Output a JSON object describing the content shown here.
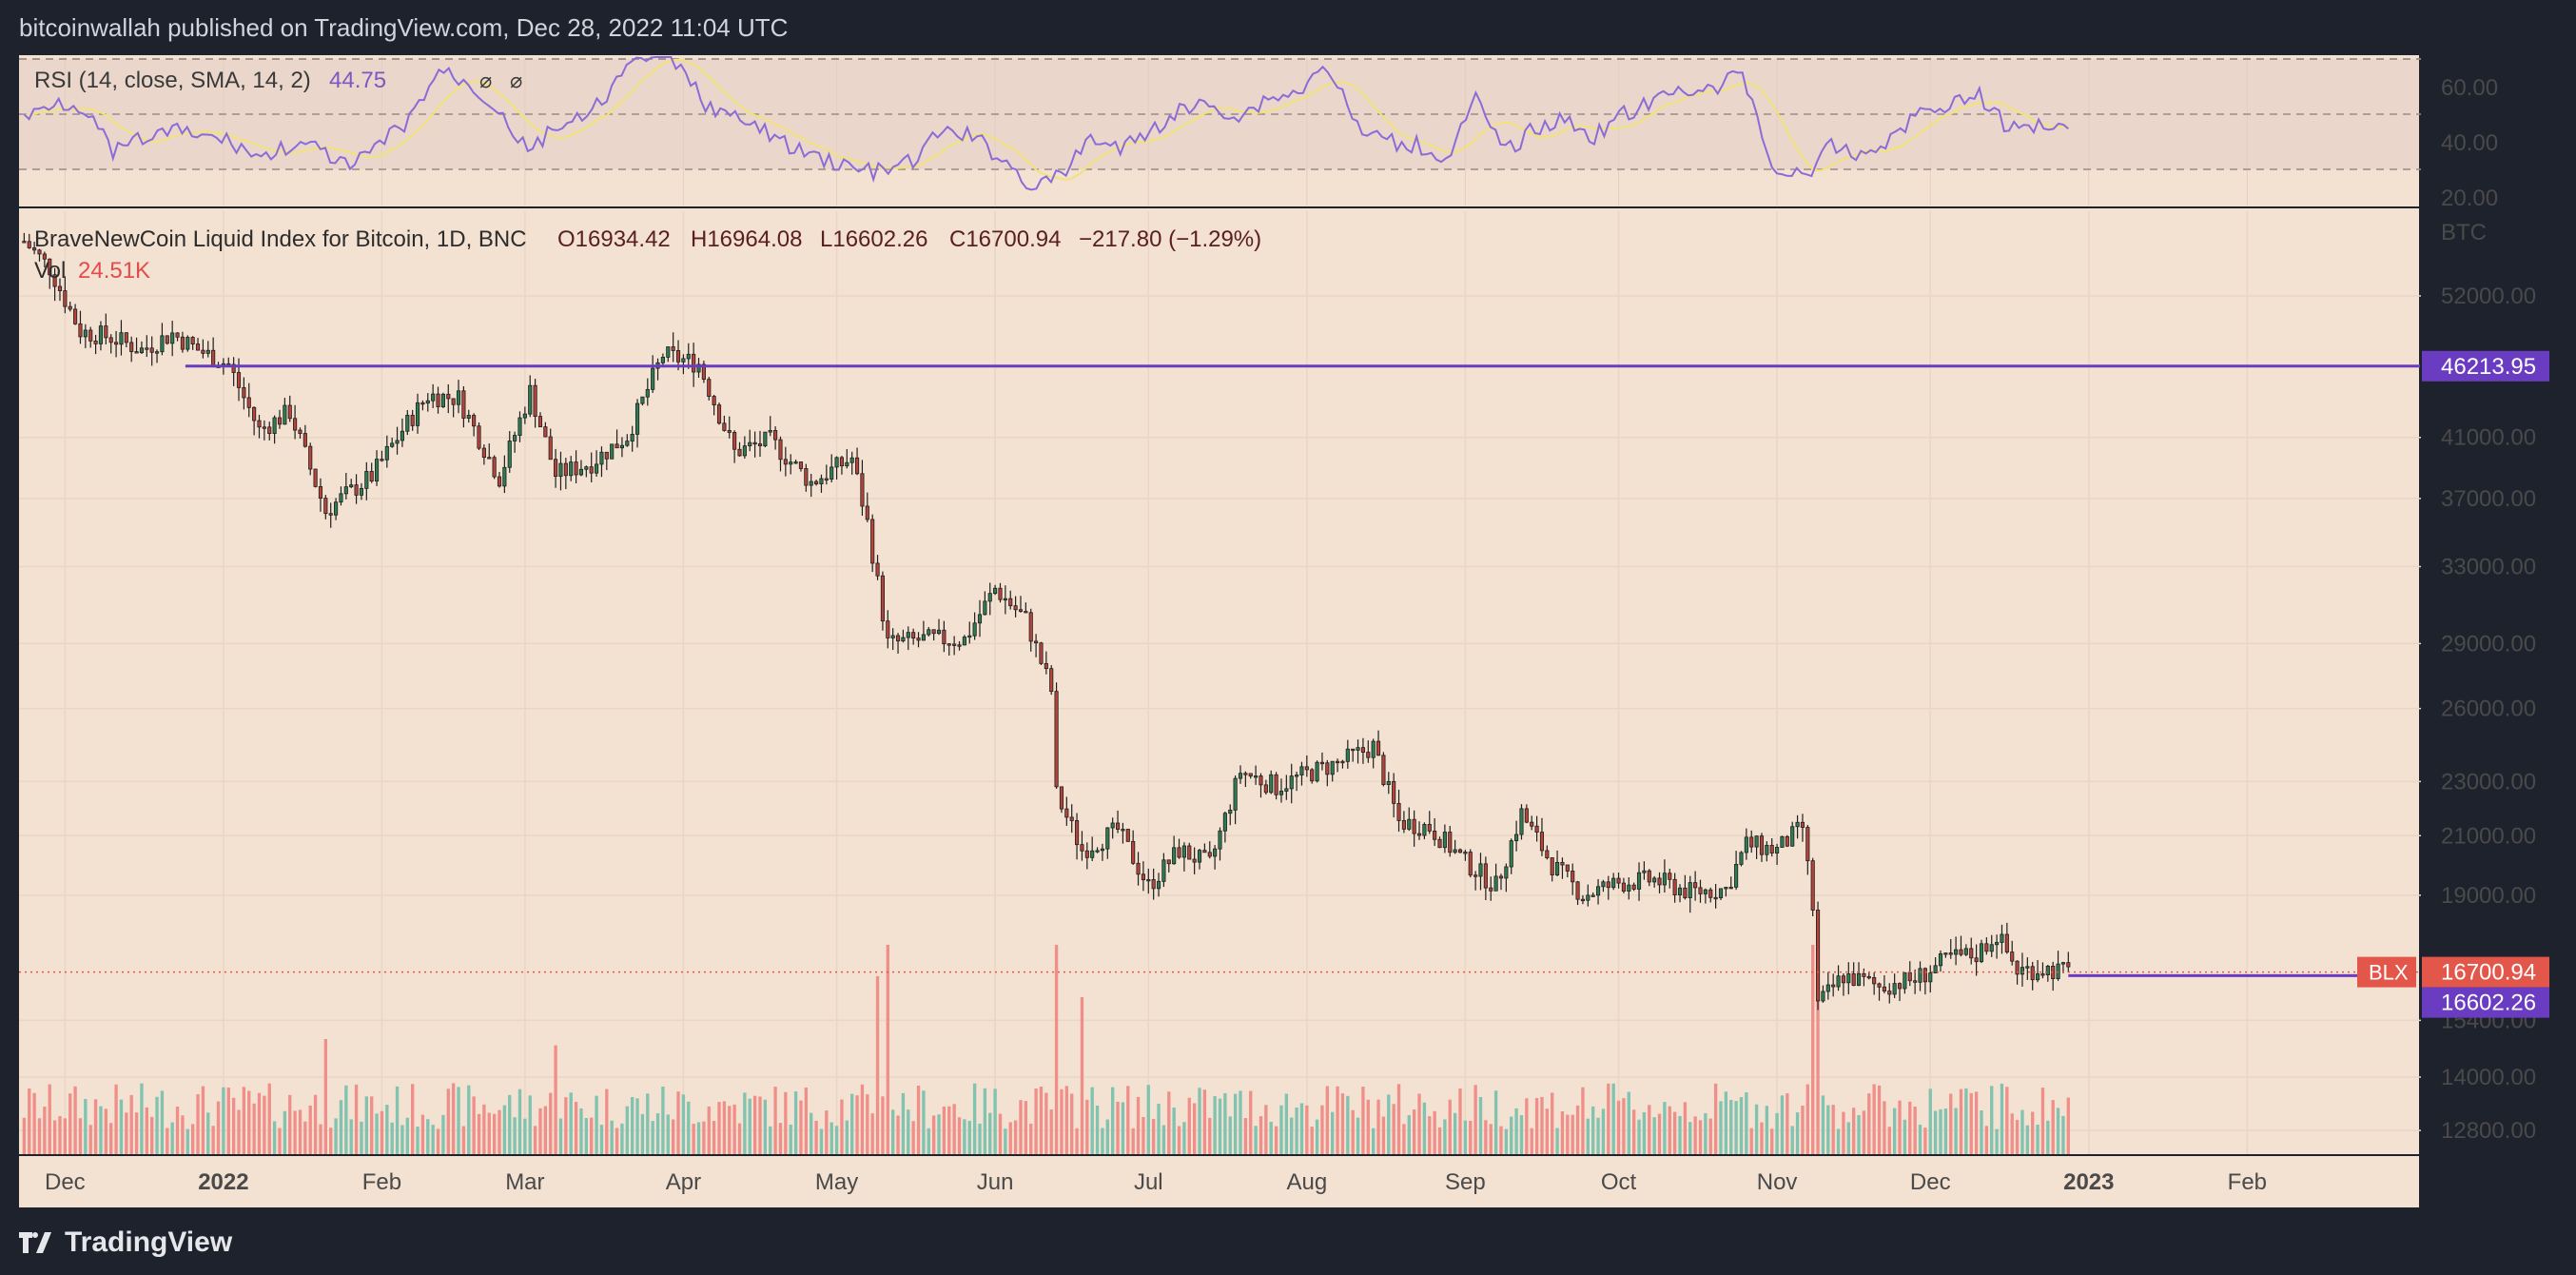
{
  "header": {
    "publish_text": "bitcoinwallah published on TradingView.com, Dec 28, 2022 11:04 UTC"
  },
  "footer": {
    "brand": "TradingView"
  },
  "theme": {
    "background": "#1e222d",
    "pane_bg": "#f3e1d1",
    "rsi_bg": "#ead6ca",
    "up_color": "#2e7d52",
    "down_color": "#b5443a",
    "vol_up": "#7fc3b0",
    "vol_down": "#f08f8a",
    "level_line": "#6a3cc1",
    "rsi_line": "#8a6cd8",
    "rsi_sma": "#f2e27a",
    "last_price_bg": "#e3574b"
  },
  "rsi_pane": {
    "legend_label": "RSI (14, close, SMA, 14, 2)",
    "legend_value": "44.75",
    "legend_icons": [
      "⌀",
      "⌀"
    ],
    "axis_labels": [
      "60.00",
      "40.00",
      "20.00"
    ]
  },
  "main_pane": {
    "legend": {
      "symbol": "BraveNewCoin Liquid Index for Bitcoin, 1D, BNC",
      "open": "O16934.42",
      "high": "H16964.08",
      "low": "L16602.26",
      "close": "C16700.94",
      "change": "−217.80 (−1.29%)",
      "vol_label": "Vol",
      "vol_value": "24.51K"
    },
    "currency": "BTC",
    "price_axis": [
      "52000.00",
      "41000.00",
      "37000.00",
      "33000.00",
      "29000.00",
      "26000.00",
      "23000.00",
      "21000.00",
      "19000.00",
      "15400.00",
      "14000.00",
      "12800.00"
    ],
    "labels": {
      "level_price": "46213.95",
      "symbol_tag": "BLX",
      "last_price": "16700.94",
      "low_price": "16602.26"
    }
  },
  "time_axis": [
    "Dec",
    "2022",
    "Feb",
    "Mar",
    "Apr",
    "May",
    "Jun",
    "Jul",
    "Aug",
    "Sep",
    "Oct",
    "Nov",
    "Dec",
    "2023",
    "Feb"
  ],
  "chart_data": {
    "type": "candlestick",
    "symbol": "BraveNewCoin Liquid Index for Bitcoin, 1D, BNC",
    "interval": "1D",
    "x_range": [
      "2021-11-23",
      "2022-12-28"
    ],
    "y_scale": "log",
    "horizontal_level": 46213.95,
    "last_close": 16700.94,
    "last_low": 16602.26,
    "ohlc": {
      "open": 16934.42,
      "high": 16964.08,
      "low": 16602.26,
      "close": 16700.94,
      "change": -217.8,
      "change_pct": -1.29
    },
    "close_series": {
      "dates": [
        "2021-11-23",
        "2021-11-28",
        "2021-12-04",
        "2021-12-10",
        "2021-12-16",
        "2021-12-22",
        "2021-12-27",
        "2022-01-02",
        "2022-01-08",
        "2022-01-14",
        "2022-01-21",
        "2022-01-24",
        "2022-01-30",
        "2022-02-05",
        "2022-02-10",
        "2022-02-16",
        "2022-02-24",
        "2022-03-02",
        "2022-03-07",
        "2022-03-14",
        "2022-03-21",
        "2022-03-28",
        "2022-04-04",
        "2022-04-11",
        "2022-04-18",
        "2022-04-26",
        "2022-05-04",
        "2022-05-07",
        "2022-05-11",
        "2022-05-18",
        "2022-05-26",
        "2022-06-01",
        "2022-06-07",
        "2022-06-12",
        "2022-06-13",
        "2022-06-18",
        "2022-06-25",
        "2022-07-01",
        "2022-07-07",
        "2022-07-13",
        "2022-07-19",
        "2022-07-26",
        "2022-08-01",
        "2022-08-08",
        "2022-08-14",
        "2022-08-19",
        "2022-08-25",
        "2022-09-01",
        "2022-09-07",
        "2022-09-12",
        "2022-09-18",
        "2022-09-24",
        "2022-10-01",
        "2022-10-08",
        "2022-10-15",
        "2022-10-22",
        "2022-10-26",
        "2022-11-01",
        "2022-11-06",
        "2022-11-08",
        "2022-11-09",
        "2022-11-14",
        "2022-11-21",
        "2022-11-28",
        "2022-12-05",
        "2022-12-10",
        "2022-12-14",
        "2022-12-18",
        "2022-12-23",
        "2022-12-28"
      ],
      "values": [
        57000,
        54500,
        49000,
        48500,
        47500,
        48800,
        47500,
        46300,
        41500,
        42800,
        36200,
        37000,
        38400,
        41500,
        44000,
        43800,
        38300,
        44300,
        38500,
        39300,
        41100,
        47100,
        46400,
        40000,
        40800,
        38000,
        39600,
        35500,
        29000,
        29200,
        29200,
        31800,
        30200,
        26800,
        22500,
        20500,
        21200,
        19300,
        20500,
        20000,
        23400,
        22800,
        23300,
        23800,
        24400,
        21500,
        21300,
        20100,
        19300,
        21800,
        20000,
        19000,
        19400,
        19500,
        19100,
        19200,
        20700,
        20500,
        21300,
        18600,
        15800,
        16600,
        16300,
        16500,
        17100,
        17200,
        17800,
        16750,
        16800,
        16700
      ]
    },
    "rsi": {
      "period": 14,
      "smoothing": "SMA 14",
      "last": 44.75,
      "levels": [
        30,
        50,
        70
      ],
      "values": [
        48,
        55,
        53,
        36,
        41,
        44,
        42,
        40,
        34,
        39,
        37,
        30,
        39,
        48,
        66,
        61,
        52,
        36,
        46,
        48,
        62,
        72,
        68,
        54,
        48,
        44,
        37,
        34,
        30,
        29,
        33,
        44,
        42,
        34,
        24,
        27,
        42,
        37,
        44,
        51,
        54,
        49,
        56,
        58,
        68,
        45,
        40,
        39,
        34,
        55,
        36,
        45,
        48,
        42,
        50,
        54,
        60,
        58,
        66,
        31,
        27,
        38,
        35,
        41,
        51,
        54,
        57,
        44,
        47,
        44.75
      ]
    },
    "volume": {
      "last": "24.51K",
      "spikes": [
        {
          "date": "2022-01-21",
          "rel": 0.55
        },
        {
          "date": "2022-03-07",
          "rel": 0.52
        },
        {
          "date": "2022-05-09",
          "rel": 0.85
        },
        {
          "date": "2022-05-11",
          "rel": 1.0
        },
        {
          "date": "2022-06-13",
          "rel": 1.0
        },
        {
          "date": "2022-06-18",
          "rel": 0.75
        },
        {
          "date": "2022-11-08",
          "rel": 1.0
        },
        {
          "date": "2022-11-09",
          "rel": 0.9
        }
      ]
    }
  }
}
